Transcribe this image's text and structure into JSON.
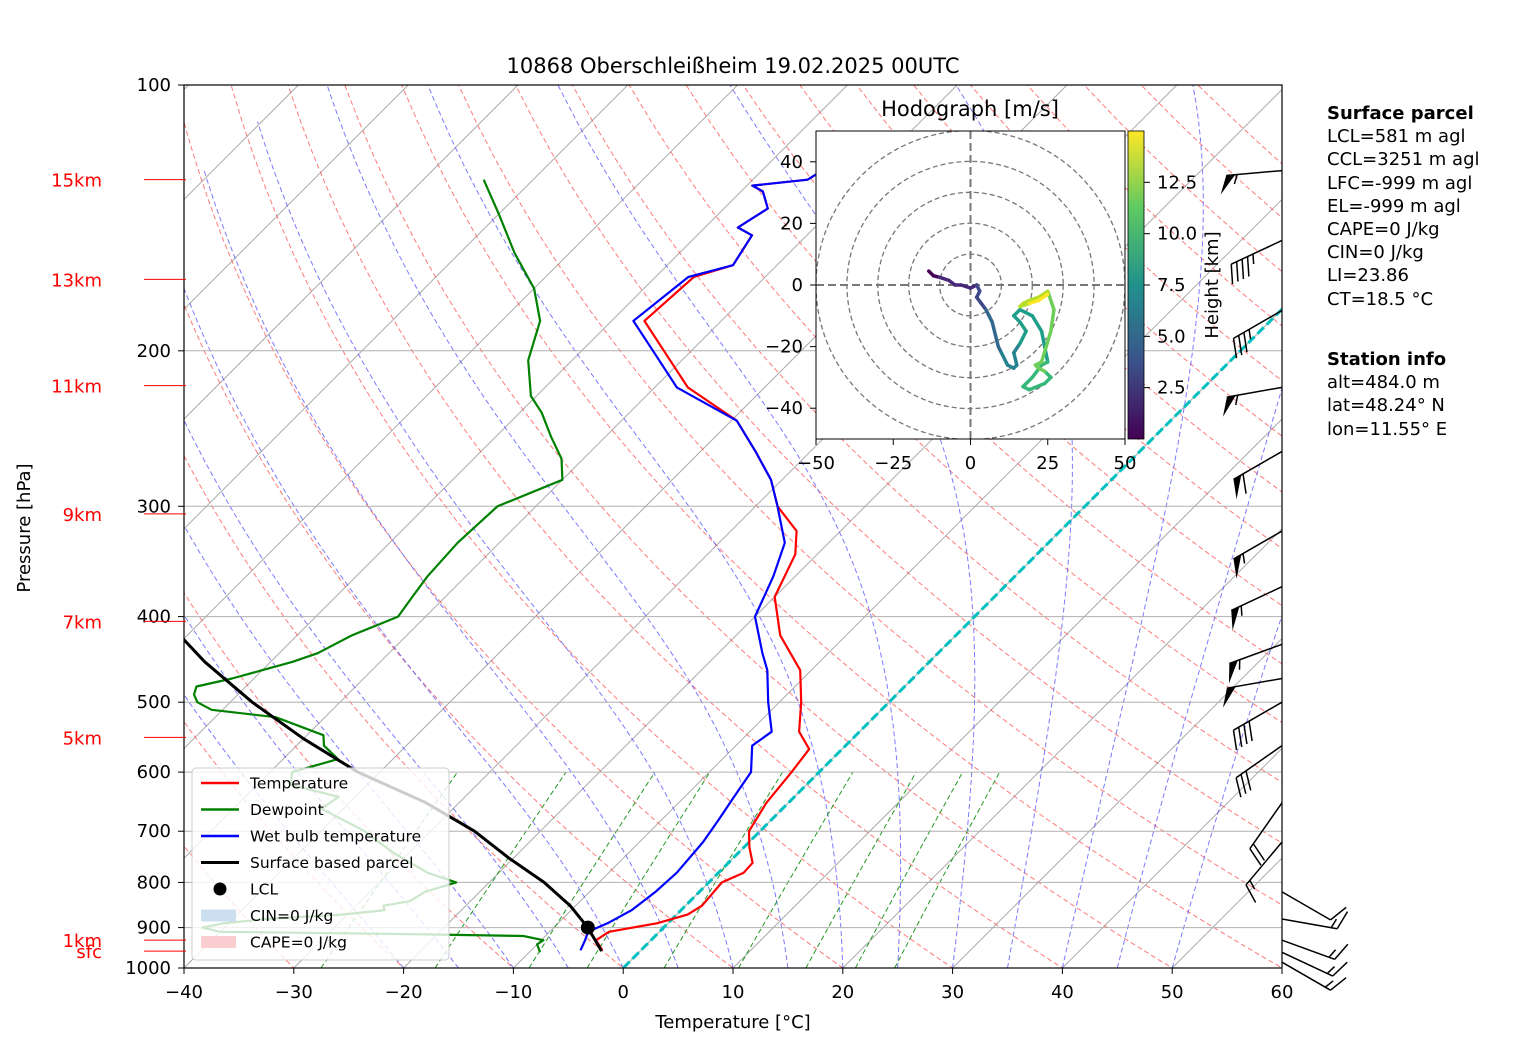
{
  "chart_data": [
    {
      "type": "line",
      "title": "10868 Oberschleißheim 19.02.2025 00UTC",
      "xlabel": "Temperature [°C]",
      "ylabel": "Pressure [hPa]",
      "xlim": [
        -40,
        60
      ],
      "ylim": [
        1000,
        100
      ],
      "y_scale": "log",
      "skew": "45°",
      "x_ticks": [
        "−40",
        "−30",
        "−20",
        "−10",
        "0",
        "10",
        "20",
        "30",
        "40",
        "50",
        "60"
      ],
      "x_tick_values": [
        -40,
        -30,
        -20,
        -10,
        0,
        10,
        20,
        30,
        40,
        50,
        60
      ],
      "y_ticks": [
        "100",
        "200",
        "300",
        "400",
        "500",
        "600",
        "700",
        "800",
        "900",
        "1000"
      ],
      "y_tick_values": [
        100,
        200,
        300,
        400,
        500,
        600,
        700,
        800,
        900,
        1000
      ],
      "height_labels": [
        {
          "label": "15km",
          "p": 128
        },
        {
          "label": "13km",
          "p": 166
        },
        {
          "label": "11km",
          "p": 219
        },
        {
          "label": "9km",
          "p": 306
        },
        {
          "label": "7km",
          "p": 405
        },
        {
          "label": "5km",
          "p": 548
        },
        {
          "label": "1km",
          "p": 930
        },
        {
          "label": "sfc",
          "p": 957
        }
      ],
      "grid": true,
      "legend_position": "bottom-left",
      "series": [
        {
          "name": "Temperature",
          "color": "#ff0000",
          "x": [
            -3.5,
            -5.0,
            -4.6,
            -1.0,
            1.0,
            1.5,
            1.2,
            2.3,
            2.2,
            0.5,
            -1.0,
            -2.0,
            -2.5,
            -3.0,
            -5.5,
            -8.0,
            -11.0,
            -16.0,
            -20.0,
            -22.0,
            -24.0,
            -28.0,
            -31.0,
            -35.0,
            -39.5,
            -47.0,
            -52.5,
            -57.0,
            -56.5,
            -54.0,
            -55.0,
            -57.0,
            -56.0,
            -58.0,
            -59.5,
            -55.0,
            -54.5
          ],
          "y": [
            955,
            930,
            910,
            890,
            870,
            850,
            800,
            780,
            760,
            730,
            700,
            650,
            600,
            565,
            540,
            500,
            460,
            420,
            380,
            340,
            320,
            300,
            280,
            260,
            240,
            220,
            200,
            185,
            165,
            160,
            148,
            145,
            138,
            132,
            130,
            128,
            125
          ]
        },
        {
          "name": "Dewpoint",
          "color": "#008000",
          "x": [
            -9.0,
            -9.5,
            -10.0,
            -9.8,
            -12.0,
            -24.0,
            -40.0,
            -42.0,
            -40.5,
            -37.0,
            -30.5,
            -27.0,
            -27.5,
            -25.5,
            -25.0,
            -23.0,
            -26.5,
            -31.5,
            -36.0,
            -42.0,
            -41.5,
            -47.0,
            -48.0,
            -45.0,
            -47.5,
            -48.5,
            -54.5,
            -61.0,
            -63.0,
            -64.0,
            -64.5,
            -62.0,
            -60.0,
            -58.0,
            -56.5,
            -55.0,
            -52.5,
            -53.0,
            -53.5,
            -53.8,
            -53.5,
            -50.0,
            -52.0,
            -55.0,
            -58.0,
            -60.5,
            -64.0,
            -66.5,
            -70.0,
            -75.0,
            -80.0,
            -84.5
          ],
          "y": [
            960,
            950,
            940,
            930,
            920,
            915,
            910,
            900,
            890,
            880,
            870,
            860,
            850,
            840,
            820,
            800,
            780,
            740,
            700,
            660,
            640,
            620,
            600,
            580,
            560,
            545,
            520,
            510,
            500,
            490,
            480,
            470,
            460,
            450,
            440,
            420,
            400,
            380,
            360,
            330,
            300,
            280,
            265,
            250,
            235,
            225,
            205,
            185,
            170,
            155,
            140,
            128
          ]
        },
        {
          "name": "Wet bulb temperature",
          "color": "#0000ff",
          "x": [
            -5.5,
            -6.0,
            -6.5,
            -5.5,
            -4.5,
            -4.0,
            -3.8,
            -4.2,
            -4.8,
            -5.5,
            -6.2,
            -8.5,
            -8.0,
            -11.0,
            -14.0,
            -16.0,
            -20.0,
            -22.0,
            -24.0,
            -28.0,
            -31.0,
            -35.0,
            -39.5,
            -48.0,
            -53.5,
            -58.0,
            -57.0,
            -54.0,
            -55.0,
            -57.0,
            -56.0,
            -58.0,
            -59.5,
            -55.0,
            -54.5
          ],
          "y": [
            955,
            930,
            910,
            890,
            860,
            820,
            780,
            720,
            680,
            640,
            600,
            560,
            540,
            500,
            460,
            440,
            400,
            360,
            330,
            300,
            280,
            260,
            240,
            220,
            200,
            185,
            165,
            160,
            148,
            145,
            138,
            132,
            130,
            128,
            125
          ]
        },
        {
          "name": "Surface based parcel",
          "color": "#000000",
          "x": [
            -3.5,
            -6.9,
            -10.5,
            -15.0,
            -20.5,
            -26.0,
            -33.0,
            -42.0,
            -50.0,
            -58.0,
            -66.0,
            -74.0
          ],
          "y": [
            957,
            900,
            850,
            800,
            750,
            700,
            650,
            600,
            550,
            500,
            450,
            400
          ]
        }
      ],
      "annotations": [
        {
          "name": "LCL",
          "x": -6.9,
          "y": 900
        },
        {
          "name": "CIN=0 J/kg",
          "color": "#c6dbef"
        },
        {
          "name": "CAPE=0 J/kg",
          "color": "#f9c8cc"
        },
        {
          "name": "0 °C isotherm",
          "color": "#00bfbf"
        }
      ]
    },
    {
      "type": "line",
      "title": "Hodograph [m/s]",
      "xlim": [
        -50,
        50
      ],
      "ylim": [
        -50,
        50
      ],
      "x_ticks": [
        "−50",
        "−25",
        "0",
        "25",
        "50"
      ],
      "x_tick_values": [
        -50,
        -25,
        0,
        25,
        50
      ],
      "y_ticks": [
        "40",
        "20",
        "0",
        "−20",
        "−40"
      ],
      "y_tick_values": [
        40,
        20,
        0,
        -20,
        -40
      ],
      "rings": [
        10,
        20,
        30,
        40,
        50
      ],
      "colorbar": {
        "label": "Height [km]",
        "ticks": [
          "2.5",
          "5.0",
          "7.5",
          "10.0",
          "12.5"
        ],
        "tick_values": [
          2.5,
          5.0,
          7.5,
          10.0,
          12.5
        ],
        "range": [
          0,
          15
        ],
        "colormap": "viridis"
      },
      "series": [
        {
          "name": "wind",
          "u": [
            -13.5,
            -12,
            -10,
            -7,
            -5,
            -3,
            0,
            2,
            3,
            2,
            3.5,
            5,
            6,
            7,
            7.5,
            8,
            8.5,
            9,
            10,
            12,
            14,
            15,
            14,
            16,
            18,
            16,
            14,
            16,
            20,
            23,
            25,
            23,
            20,
            17,
            19,
            24,
            26,
            24,
            22,
            21,
            23,
            26,
            27,
            25,
            22,
            19,
            17,
            16,
            19,
            22,
            25
          ],
          "v": [
            4.5,
            3,
            2.5,
            1.5,
            0,
            0,
            -1,
            0,
            -2,
            -4,
            -6,
            -8,
            -10,
            -12,
            -14,
            -16,
            -18,
            -20,
            -22,
            -26,
            -27,
            -26,
            -22,
            -19,
            -15,
            -12,
            -10,
            -8,
            -10,
            -15,
            -25,
            -26,
            -30,
            -33,
            -34,
            -32,
            -30,
            -28,
            -27,
            -26,
            -25,
            -15,
            -8,
            -2,
            -4,
            -5,
            -6,
            -7,
            -6,
            -5,
            -3
          ],
          "height_km": [
            0.5,
            0.8,
            1.0,
            1.3,
            1.6,
            2.0,
            2.3,
            2.7,
            3.1,
            3.5,
            3.9,
            4.2,
            4.5,
            4.8,
            5.0,
            5.3,
            5.5,
            5.8,
            6.0,
            6.3,
            6.6,
            6.9,
            7.2,
            7.5,
            7.8,
            8.0,
            8.3,
            8.5,
            8.8,
            9.0,
            9.2,
            9.4,
            9.6,
            9.8,
            10.0,
            10.3,
            10.6,
            10.9,
            11.2,
            11.5,
            11.8,
            12.1,
            12.4,
            12.7,
            13.0,
            13.3,
            13.6,
            13.9,
            14.2,
            14.5,
            14.8
          ]
        }
      ]
    }
  ],
  "wind_barbs": [
    {
      "p": 125,
      "dir": 265,
      "speed": 55
    },
    {
      "p": 150,
      "dir": 245,
      "speed": 45
    },
    {
      "p": 180,
      "dir": 240,
      "speed": 35
    },
    {
      "p": 220,
      "dir": 260,
      "speed": 55
    },
    {
      "p": 260,
      "dir": 240,
      "speed": 60
    },
    {
      "p": 320,
      "dir": 240,
      "speed": 55
    },
    {
      "p": 370,
      "dir": 245,
      "speed": 55
    },
    {
      "p": 430,
      "dir": 250,
      "speed": 55
    },
    {
      "p": 470,
      "dir": 260,
      "speed": 50
    },
    {
      "p": 500,
      "dir": 240,
      "speed": 40
    },
    {
      "p": 560,
      "dir": 235,
      "speed": 30
    },
    {
      "p": 650,
      "dir": 215,
      "speed": 20
    },
    {
      "p": 720,
      "dir": 220,
      "speed": 15
    },
    {
      "p": 820,
      "dir": 120,
      "speed": 10
    },
    {
      "p": 880,
      "dir": 100,
      "speed": 15
    },
    {
      "p": 930,
      "dir": 110,
      "speed": 15
    },
    {
      "p": 960,
      "dir": 115,
      "speed": 15
    },
    {
      "p": 985,
      "dir": 120,
      "speed": 15
    }
  ],
  "legend": [
    {
      "label": "Temperature",
      "kind": "line",
      "color": "#ff0000"
    },
    {
      "label": "Dewpoint",
      "kind": "line",
      "color": "#008000"
    },
    {
      "label": "Wet bulb temperature",
      "kind": "line",
      "color": "#0000ff"
    },
    {
      "label": "Surface based parcel",
      "kind": "line",
      "color": "#000000"
    },
    {
      "label": "LCL",
      "kind": "dot",
      "color": "#000000"
    },
    {
      "label": "CIN=0 J/kg",
      "kind": "patch",
      "color": "#c6dbef"
    },
    {
      "label": "CAPE=0 J/kg",
      "kind": "patch",
      "color": "#f9c8cc"
    }
  ],
  "surface_parcel": {
    "heading": "Surface parcel",
    "lines": [
      "LCL=581 m agl",
      "CCL=3251 m agl",
      "LFC=-999 m agl",
      "EL=-999 m agl",
      "CAPE=0 J/kg",
      "CIN=0 J/kg",
      "LI=23.86",
      "CT=18.5 °C"
    ]
  },
  "station_info": {
    "heading": "Station info",
    "lines": [
      "alt=484.0 m",
      "lat=48.24° N",
      "lon=11.55° E"
    ]
  }
}
